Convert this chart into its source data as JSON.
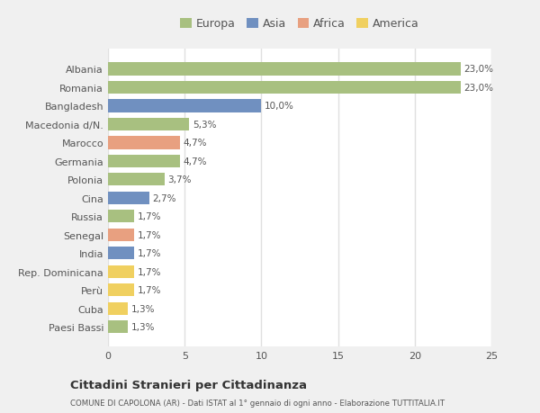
{
  "countries": [
    "Albania",
    "Romania",
    "Bangladesh",
    "Macedonia d/N.",
    "Marocco",
    "Germania",
    "Polonia",
    "Cina",
    "Russia",
    "Senegal",
    "India",
    "Rep. Dominicana",
    "Perù",
    "Cuba",
    "Paesi Bassi"
  ],
  "values": [
    23.0,
    23.0,
    10.0,
    5.3,
    4.7,
    4.7,
    3.7,
    2.7,
    1.7,
    1.7,
    1.7,
    1.7,
    1.7,
    1.3,
    1.3
  ],
  "labels": [
    "23,0%",
    "23,0%",
    "10,0%",
    "5,3%",
    "4,7%",
    "4,7%",
    "3,7%",
    "2,7%",
    "1,7%",
    "1,7%",
    "1,7%",
    "1,7%",
    "1,7%",
    "1,3%",
    "1,3%"
  ],
  "continents": [
    "Europa",
    "Europa",
    "Asia",
    "Europa",
    "Africa",
    "Europa",
    "Europa",
    "Asia",
    "Europa",
    "Africa",
    "Asia",
    "America",
    "America",
    "America",
    "Europa"
  ],
  "colors": {
    "Europa": "#a8c080",
    "Asia": "#7090c0",
    "Africa": "#e8a080",
    "America": "#f0d060"
  },
  "legend_order": [
    "Europa",
    "Asia",
    "Africa",
    "America"
  ],
  "xlim": [
    0,
    25
  ],
  "xticks": [
    0,
    5,
    10,
    15,
    20,
    25
  ],
  "title": "Cittadini Stranieri per Cittadinanza",
  "subtitle": "COMUNE DI CAPOLONA (AR) - Dati ISTAT al 1° gennaio di ogni anno - Elaborazione TUTTITALIA.IT",
  "background_color": "#f0f0f0",
  "plot_background": "#ffffff",
  "grid_color": "#e0e0e0",
  "text_color": "#555555"
}
